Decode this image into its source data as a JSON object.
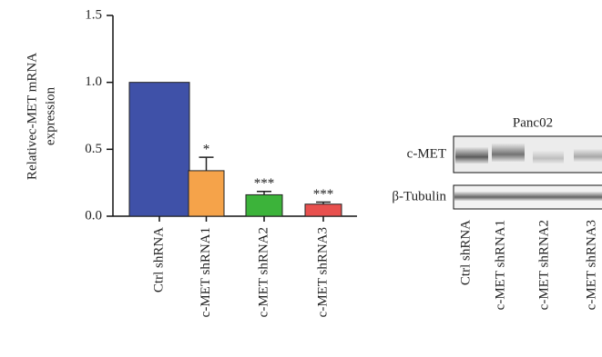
{
  "chart_data": {
    "type": "bar",
    "y_label": [
      "Relativec-MET mRNA",
      "expression"
    ],
    "categories": [
      "Ctrl shRNA",
      "c-MET shRNA1",
      "c-MET shRNA2",
      "c-MET shRNA3"
    ],
    "values": [
      1.0,
      0.34,
      0.16,
      0.09
    ],
    "errors": [
      null,
      0.1,
      0.025,
      0.015
    ],
    "significance": [
      null,
      "*",
      "***",
      "***"
    ],
    "colors": [
      "#3f51a8",
      "#f5a34a",
      "#3cb33a",
      "#e8504e"
    ],
    "ylim": [
      0,
      1.5
    ],
    "yticks": [
      {
        "value": 0,
        "label": "0.0"
      },
      0.5,
      {
        "value": 1,
        "label": "1.0"
      },
      1.5
    ]
  },
  "blot": {
    "title": "Panc02",
    "rows": [
      "c-MET",
      "β-Tubulin"
    ],
    "lanes": [
      "Ctrl shRNA",
      "c-MET shRNA1",
      "c-MET shRNA2",
      "c-MET shRNA3"
    ]
  }
}
